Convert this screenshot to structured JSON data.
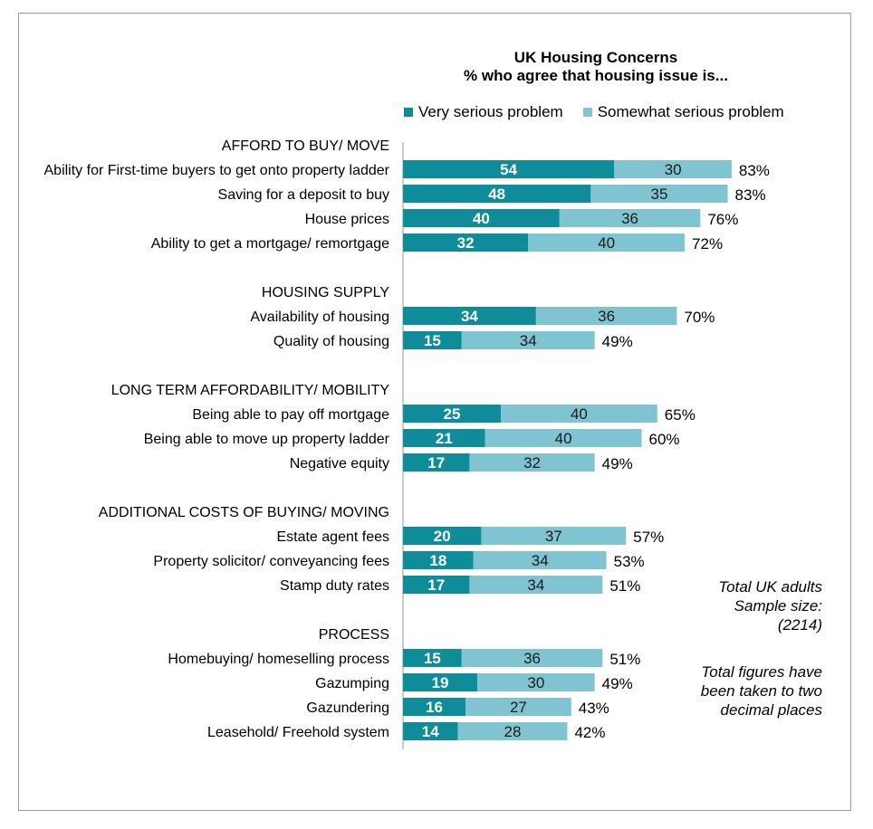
{
  "chart_data": {
    "type": "bar",
    "orientation": "horizontal",
    "stacked": true,
    "title": "UK Housing Concerns",
    "subtitle": "% who agree that housing issue is...",
    "legend": [
      {
        "name": "Very serious problem",
        "color": "#0f8c9a"
      },
      {
        "name": "Somewhat serious problem",
        "color": "#7fc4d0"
      }
    ],
    "groups": [
      {
        "heading": "AFFORD TO BUY/ MOVE",
        "items": [
          {
            "label": "Ability for First-time buyers to get onto property ladder",
            "very": 54,
            "somewhat": 30,
            "total": "83%"
          },
          {
            "label": "Saving for a deposit to buy",
            "very": 48,
            "somewhat": 35,
            "total": "83%"
          },
          {
            "label": "House prices",
            "very": 40,
            "somewhat": 36,
            "total": "76%"
          },
          {
            "label": "Ability to get a mortgage/ remortgage",
            "very": 32,
            "somewhat": 40,
            "total": "72%"
          }
        ]
      },
      {
        "heading": "HOUSING SUPPLY",
        "items": [
          {
            "label": "Availability of housing",
            "very": 34,
            "somewhat": 36,
            "total": "70%"
          },
          {
            "label": "Quality of housing",
            "very": 15,
            "somewhat": 34,
            "total": "49%"
          }
        ]
      },
      {
        "heading": "LONG TERM AFFORDABILITY/ MOBILITY",
        "items": [
          {
            "label": "Being able to pay off mortgage",
            "very": 25,
            "somewhat": 40,
            "total": "65%"
          },
          {
            "label": "Being able to move up property ladder",
            "very": 21,
            "somewhat": 40,
            "total": "60%"
          },
          {
            "label": "Negative equity",
            "very": 17,
            "somewhat": 32,
            "total": "49%"
          }
        ]
      },
      {
        "heading": "ADDITIONAL COSTS OF BUYING/ MOVING",
        "items": [
          {
            "label": "Estate agent fees",
            "very": 20,
            "somewhat": 37,
            "total": "57%"
          },
          {
            "label": "Property solicitor/ conveyancing fees",
            "very": 18,
            "somewhat": 34,
            "total": "53%"
          },
          {
            "label": "Stamp duty rates",
            "very": 17,
            "somewhat": 34,
            "total": "51%"
          }
        ]
      },
      {
        "heading": "PROCESS",
        "items": [
          {
            "label": "Homebuying/ homeselling process",
            "very": 15,
            "somewhat": 36,
            "total": "51%"
          },
          {
            "label": "Gazumping",
            "very": 19,
            "somewhat": 30,
            "total": "49%"
          },
          {
            "label": "Gazundering",
            "very": 16,
            "somewhat": 27,
            "total": "43%"
          },
          {
            "label": "Leasehold/ Freehold system",
            "very": 14,
            "somewhat": 28,
            "total": "42%"
          }
        ]
      }
    ],
    "notes": {
      "sample": [
        "Total UK adults",
        "Sample size:",
        "(2214)"
      ],
      "rounding": [
        "Total figures have",
        "been taken to two",
        "decimal places"
      ]
    }
  }
}
